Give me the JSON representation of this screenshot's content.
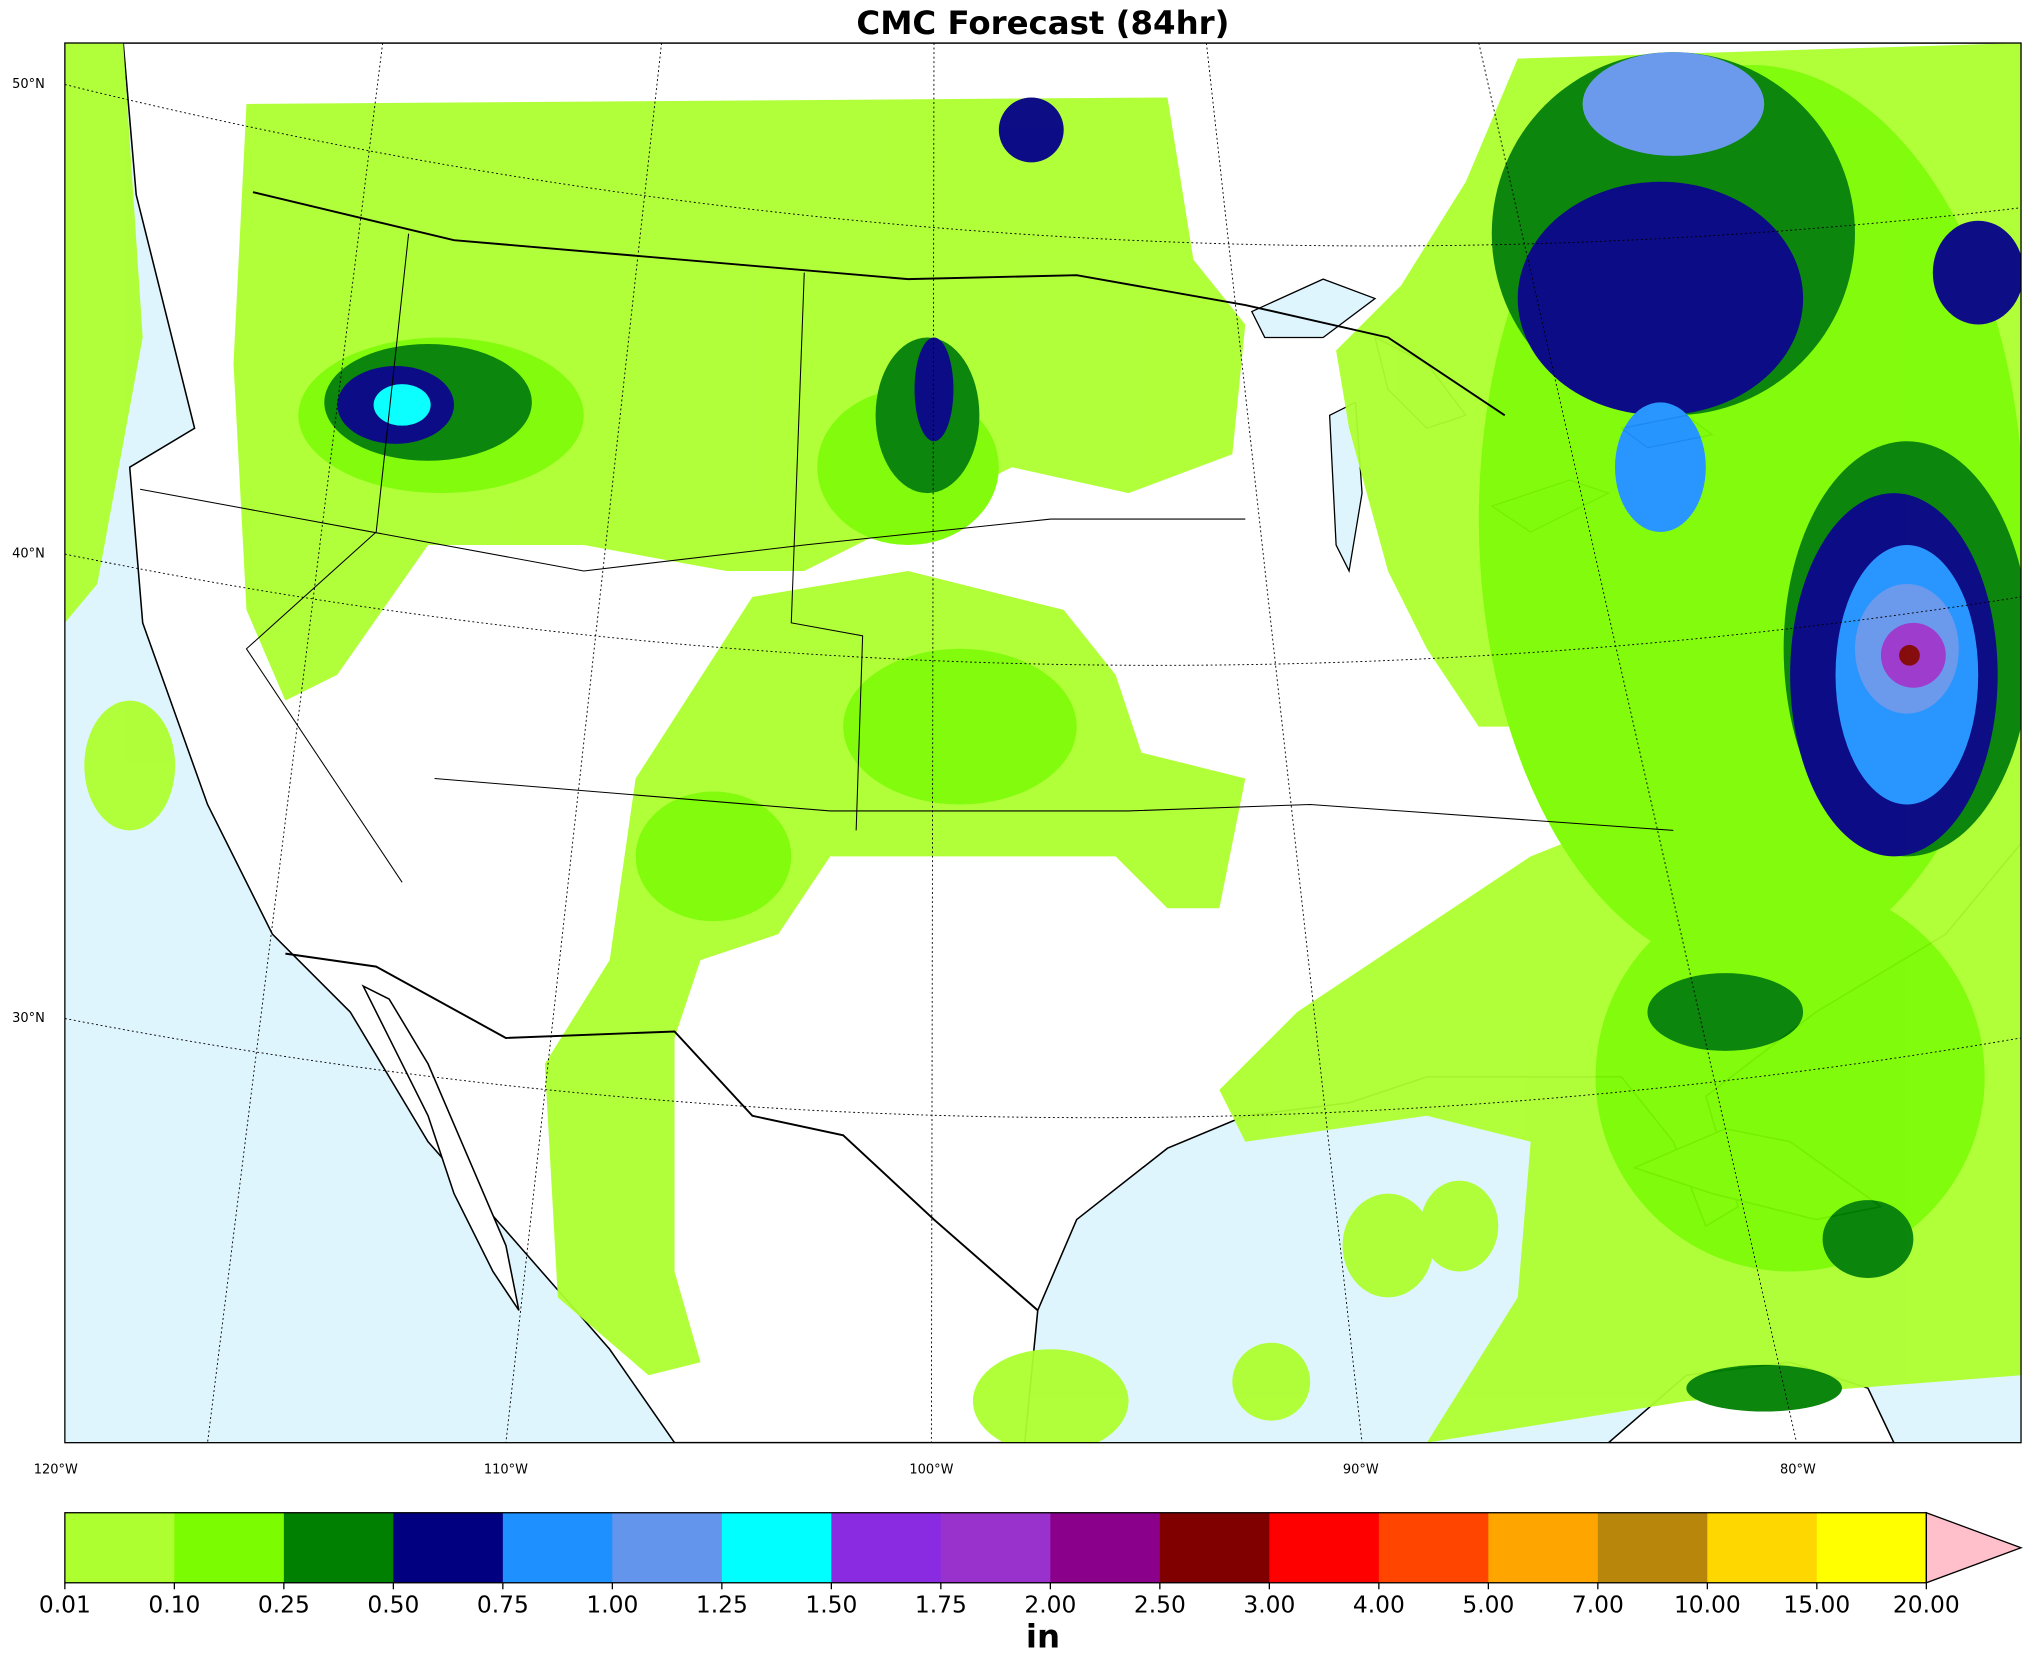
{
  "title": "CMC Forecast (84hr)",
  "map": {
    "lat_labels": [
      "50°N",
      "40°N",
      "30°N"
    ],
    "lon_labels": [
      "120°W",
      "110°W",
      "100°W",
      "90°W",
      "80°W"
    ]
  },
  "colorbar": {
    "ticks": [
      {
        "value": 0.01,
        "label": "0.01"
      },
      {
        "value": 0.1,
        "label": "0.10"
      },
      {
        "value": 0.25,
        "label": "0.25"
      },
      {
        "value": 0.5,
        "label": "0.50"
      },
      {
        "value": 0.75,
        "label": "0.75"
      },
      {
        "value": 1,
        "label": "1.00"
      },
      {
        "value": 1.25,
        "label": "1.25"
      },
      {
        "value": 1.5,
        "label": "1.50"
      },
      {
        "value": 1.75,
        "label": "1.75"
      },
      {
        "value": 2,
        "label": "2.00"
      },
      {
        "value": 2.5,
        "label": "2.50"
      },
      {
        "value": 3,
        "label": "3.00"
      },
      {
        "value": 4,
        "label": "4.00"
      },
      {
        "value": 5,
        "label": "5.00"
      },
      {
        "value": 7,
        "label": "7.00"
      },
      {
        "value": 10,
        "label": "10.00"
      },
      {
        "value": 15,
        "label": "15.00"
      },
      {
        "value": 20,
        "label": "20.00"
      }
    ],
    "colors": [
      "#adff2f",
      "#7cfc00",
      "#008000",
      "#000080",
      "#1e90ff",
      "#6495ed",
      "#00ffff",
      "#8a2be2",
      "#9932cc",
      "#8b008b",
      "#800000",
      "#ff0000",
      "#ff4500",
      "#ffa500",
      "#b8860b",
      "#ffd700",
      "#ffff00"
    ],
    "extend_color": "#ffc0cb",
    "label": "in"
  }
}
